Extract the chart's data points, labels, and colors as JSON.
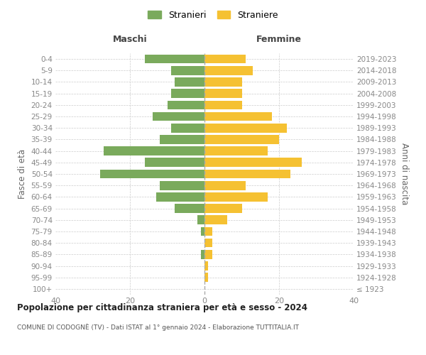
{
  "age_groups": [
    "100+",
    "95-99",
    "90-94",
    "85-89",
    "80-84",
    "75-79",
    "70-74",
    "65-69",
    "60-64",
    "55-59",
    "50-54",
    "45-49",
    "40-44",
    "35-39",
    "30-34",
    "25-29",
    "20-24",
    "15-19",
    "10-14",
    "5-9",
    "0-4"
  ],
  "birth_years": [
    "≤ 1923",
    "1924-1928",
    "1929-1933",
    "1934-1938",
    "1939-1943",
    "1944-1948",
    "1949-1953",
    "1954-1958",
    "1959-1963",
    "1964-1968",
    "1969-1973",
    "1974-1978",
    "1979-1983",
    "1984-1988",
    "1989-1993",
    "1994-1998",
    "1999-2003",
    "2004-2008",
    "2009-2013",
    "2014-2018",
    "2019-2023"
  ],
  "maschi": [
    0,
    0,
    0,
    1,
    0,
    1,
    2,
    8,
    13,
    12,
    28,
    16,
    27,
    12,
    9,
    14,
    10,
    9,
    8,
    9,
    16
  ],
  "femmine": [
    0,
    1,
    1,
    2,
    2,
    2,
    6,
    10,
    17,
    11,
    23,
    26,
    17,
    20,
    22,
    18,
    10,
    10,
    10,
    13,
    11
  ],
  "color_maschi": "#7aaa5c",
  "color_femmine": "#f5c132",
  "title": "Popolazione per cittadinanza straniera per età e sesso - 2024",
  "subtitle": "COMUNE DI CODOGNÈ (TV) - Dati ISTAT al 1° gennaio 2024 - Elaborazione TUTTITALIA.IT",
  "xlabel_left": "Maschi",
  "xlabel_right": "Femmine",
  "ylabel_left": "Fasce di età",
  "ylabel_right": "Anni di nascita",
  "legend_maschi": "Stranieri",
  "legend_femmine": "Straniere",
  "xlim": 40,
  "background_color": "#ffffff",
  "grid_color": "#cccccc",
  "axis_label_color": "#666666",
  "tick_color": "#888888"
}
